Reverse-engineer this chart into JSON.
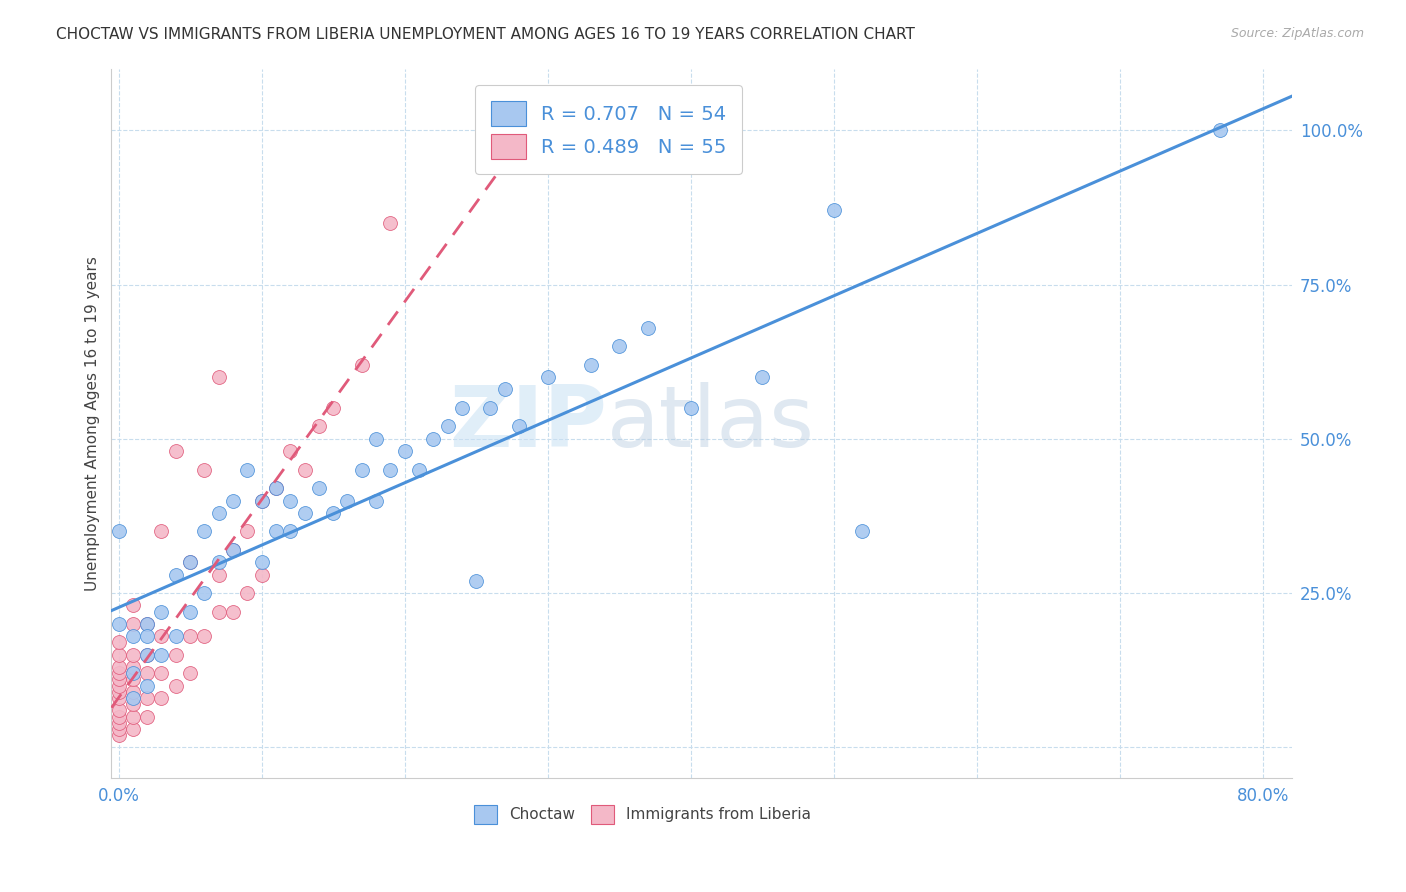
{
  "title": "CHOCTAW VS IMMIGRANTS FROM LIBERIA UNEMPLOYMENT AMONG AGES 16 TO 19 YEARS CORRELATION CHART",
  "source": "Source: ZipAtlas.com",
  "ylabel": "Unemployment Among Ages 16 to 19 years",
  "choctaw_color": "#a8c8f0",
  "liberia_color": "#f4b8c8",
  "choctaw_line_color": "#4a90d9",
  "liberia_line_color": "#e05a7a",
  "choctaw_R": 0.707,
  "choctaw_N": 54,
  "liberia_R": 0.489,
  "liberia_N": 55,
  "legend_label_choctaw": "Choctaw",
  "legend_label_liberia": "Immigrants from Liberia",
  "watermark_zip": "ZIP",
  "watermark_atlas": "atlas",
  "tick_color": "#4a90d9",
  "grid_color": "#c8dded",
  "background_color": "#ffffff",
  "title_fontsize": 11,
  "label_fontsize": 11,
  "choctaw_scatter_x": [
    0.0,
    0.0,
    0.01,
    0.01,
    0.01,
    0.02,
    0.02,
    0.02,
    0.02,
    0.03,
    0.03,
    0.04,
    0.04,
    0.05,
    0.05,
    0.06,
    0.06,
    0.07,
    0.07,
    0.08,
    0.08,
    0.09,
    0.1,
    0.1,
    0.11,
    0.11,
    0.12,
    0.12,
    0.13,
    0.14,
    0.15,
    0.16,
    0.17,
    0.18,
    0.18,
    0.19,
    0.2,
    0.21,
    0.22,
    0.23,
    0.24,
    0.25,
    0.26,
    0.27,
    0.28,
    0.3,
    0.33,
    0.35,
    0.37,
    0.4,
    0.45,
    0.5,
    0.52,
    0.77
  ],
  "choctaw_scatter_y": [
    0.35,
    0.2,
    0.08,
    0.12,
    0.18,
    0.1,
    0.15,
    0.2,
    0.18,
    0.15,
    0.22,
    0.18,
    0.28,
    0.22,
    0.3,
    0.25,
    0.35,
    0.3,
    0.38,
    0.32,
    0.4,
    0.45,
    0.3,
    0.4,
    0.35,
    0.42,
    0.35,
    0.4,
    0.38,
    0.42,
    0.38,
    0.4,
    0.45,
    0.4,
    0.5,
    0.45,
    0.48,
    0.45,
    0.5,
    0.52,
    0.55,
    0.27,
    0.55,
    0.58,
    0.52,
    0.6,
    0.62,
    0.65,
    0.68,
    0.55,
    0.6,
    0.87,
    0.35,
    1.0
  ],
  "liberia_scatter_x": [
    0.0,
    0.0,
    0.0,
    0.0,
    0.0,
    0.0,
    0.0,
    0.0,
    0.0,
    0.0,
    0.0,
    0.0,
    0.0,
    0.01,
    0.01,
    0.01,
    0.01,
    0.01,
    0.01,
    0.01,
    0.01,
    0.01,
    0.02,
    0.02,
    0.02,
    0.02,
    0.02,
    0.03,
    0.03,
    0.03,
    0.03,
    0.04,
    0.04,
    0.04,
    0.05,
    0.05,
    0.05,
    0.06,
    0.06,
    0.07,
    0.07,
    0.07,
    0.08,
    0.08,
    0.09,
    0.09,
    0.1,
    0.1,
    0.11,
    0.12,
    0.13,
    0.14,
    0.15,
    0.17,
    0.19
  ],
  "liberia_scatter_y": [
    0.02,
    0.03,
    0.04,
    0.05,
    0.06,
    0.08,
    0.09,
    0.1,
    0.11,
    0.12,
    0.13,
    0.15,
    0.17,
    0.03,
    0.05,
    0.07,
    0.09,
    0.11,
    0.13,
    0.15,
    0.2,
    0.23,
    0.05,
    0.08,
    0.12,
    0.15,
    0.2,
    0.08,
    0.12,
    0.18,
    0.35,
    0.1,
    0.15,
    0.48,
    0.12,
    0.18,
    0.3,
    0.18,
    0.45,
    0.22,
    0.28,
    0.6,
    0.22,
    0.32,
    0.25,
    0.35,
    0.28,
    0.4,
    0.42,
    0.48,
    0.45,
    0.52,
    0.55,
    0.62,
    0.85
  ],
  "x_ticks": [
    0.0,
    0.1,
    0.2,
    0.3,
    0.4,
    0.5,
    0.6,
    0.7,
    0.8
  ],
  "y_ticks": [
    0.0,
    0.25,
    0.5,
    0.75,
    1.0
  ],
  "xlim": [
    -0.005,
    0.82
  ],
  "ylim": [
    -0.05,
    1.1
  ]
}
